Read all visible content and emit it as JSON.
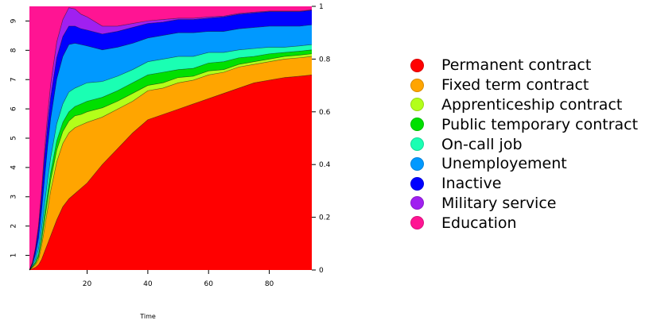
{
  "chart_data": {
    "type": "area",
    "stacked": true,
    "normalized": true,
    "xlabel": "Time",
    "x": [
      1,
      2,
      3,
      4,
      5,
      6,
      7,
      8,
      10,
      12,
      14,
      16,
      18,
      20,
      25,
      30,
      35,
      40,
      45,
      50,
      55,
      60,
      65,
      70,
      75,
      80,
      85,
      90,
      94
    ],
    "xlim": [
      1,
      94
    ],
    "xticks": [
      20,
      40,
      60,
      80
    ],
    "left_axis": {
      "ylim": [
        0.5,
        9.5
      ],
      "ticks": [
        1,
        2,
        3,
        4,
        5,
        6,
        7,
        8,
        9
      ]
    },
    "right_axis": {
      "ylim": [
        0,
        1
      ],
      "ticks": [
        0,
        0.2,
        0.4,
        0.6,
        0.8,
        1
      ]
    },
    "series": [
      {
        "name": "Permanent contract",
        "color": "#ff0000",
        "values": [
          0.0,
          0.005,
          0.01,
          0.02,
          0.04,
          0.07,
          0.1,
          0.13,
          0.19,
          0.24,
          0.27,
          0.29,
          0.31,
          0.33,
          0.4,
          0.46,
          0.52,
          0.57,
          0.59,
          0.61,
          0.63,
          0.65,
          0.67,
          0.69,
          0.71,
          0.72,
          0.73,
          0.735,
          0.74
        ]
      },
      {
        "name": "Fixed term contract",
        "color": "#ffa500",
        "values": [
          0.0,
          0.005,
          0.01,
          0.02,
          0.05,
          0.09,
          0.13,
          0.17,
          0.22,
          0.24,
          0.25,
          0.25,
          0.24,
          0.23,
          0.18,
          0.15,
          0.12,
          0.11,
          0.1,
          0.1,
          0.09,
          0.09,
          0.08,
          0.08,
          0.07,
          0.07,
          0.07,
          0.07,
          0.07
        ]
      },
      {
        "name": "Apprenticeship contract",
        "color": "#b3ff1a",
        "values": [
          0.0,
          0.002,
          0.005,
          0.01,
          0.02,
          0.03,
          0.035,
          0.04,
          0.045,
          0.045,
          0.045,
          0.045,
          0.04,
          0.04,
          0.035,
          0.03,
          0.03,
          0.02,
          0.02,
          0.02,
          0.015,
          0.015,
          0.01,
          0.01,
          0.01,
          0.01,
          0.01,
          0.01,
          0.01
        ]
      },
      {
        "name": "Public temporary contract",
        "color": "#00e000",
        "values": [
          0.0,
          0.002,
          0.005,
          0.01,
          0.015,
          0.02,
          0.025,
          0.03,
          0.035,
          0.035,
          0.035,
          0.035,
          0.04,
          0.04,
          0.04,
          0.04,
          0.04,
          0.04,
          0.04,
          0.03,
          0.03,
          0.03,
          0.03,
          0.025,
          0.02,
          0.02,
          0.015,
          0.015,
          0.015
        ]
      },
      {
        "name": "On-call job",
        "color": "#1affb3",
        "values": [
          0.0,
          0.003,
          0.01,
          0.02,
          0.03,
          0.04,
          0.05,
          0.055,
          0.065,
          0.07,
          0.075,
          0.07,
          0.07,
          0.07,
          0.06,
          0.055,
          0.05,
          0.05,
          0.05,
          0.05,
          0.045,
          0.04,
          0.035,
          0.03,
          0.03,
          0.025,
          0.02,
          0.02,
          0.02
        ]
      },
      {
        "name": "Unemployement",
        "color": "#0099ff",
        "values": [
          0.0,
          0.005,
          0.02,
          0.04,
          0.07,
          0.1,
          0.13,
          0.15,
          0.17,
          0.18,
          0.18,
          0.17,
          0.155,
          0.14,
          0.12,
          0.11,
          0.1,
          0.09,
          0.09,
          0.09,
          0.09,
          0.08,
          0.08,
          0.08,
          0.08,
          0.08,
          0.08,
          0.075,
          0.075
        ]
      },
      {
        "name": "Inactive",
        "color": "#0000ff",
        "values": [
          0.0,
          0.005,
          0.02,
          0.04,
          0.06,
          0.08,
          0.08,
          0.08,
          0.08,
          0.075,
          0.07,
          0.065,
          0.06,
          0.06,
          0.06,
          0.06,
          0.06,
          0.055,
          0.05,
          0.05,
          0.05,
          0.05,
          0.055,
          0.055,
          0.055,
          0.055,
          0.055,
          0.055,
          0.055
        ]
      },
      {
        "name": "Military service",
        "color": "#a020f0",
        "values": [
          0.0,
          0.002,
          0.005,
          0.01,
          0.02,
          0.03,
          0.04,
          0.05,
          0.06,
          0.065,
          0.07,
          0.065,
          0.055,
          0.05,
          0.03,
          0.02,
          0.015,
          0.01,
          0.01,
          0.005,
          0.005,
          0.005,
          0.003,
          0.003,
          0.003,
          0.002,
          0.002,
          0.002,
          0.002
        ]
      },
      {
        "name": "Education",
        "color": "#ff1493",
        "values": [
          1.0,
          0.973,
          0.915,
          0.83,
          0.695,
          0.54,
          0.42,
          0.295,
          0.135,
          0.05,
          0.01,
          0.01,
          0.03,
          0.04,
          0.075,
          0.075,
          0.065,
          0.055,
          0.05,
          0.045,
          0.045,
          0.04,
          0.037,
          0.027,
          0.022,
          0.018,
          0.018,
          0.018,
          0.013
        ]
      }
    ]
  }
}
